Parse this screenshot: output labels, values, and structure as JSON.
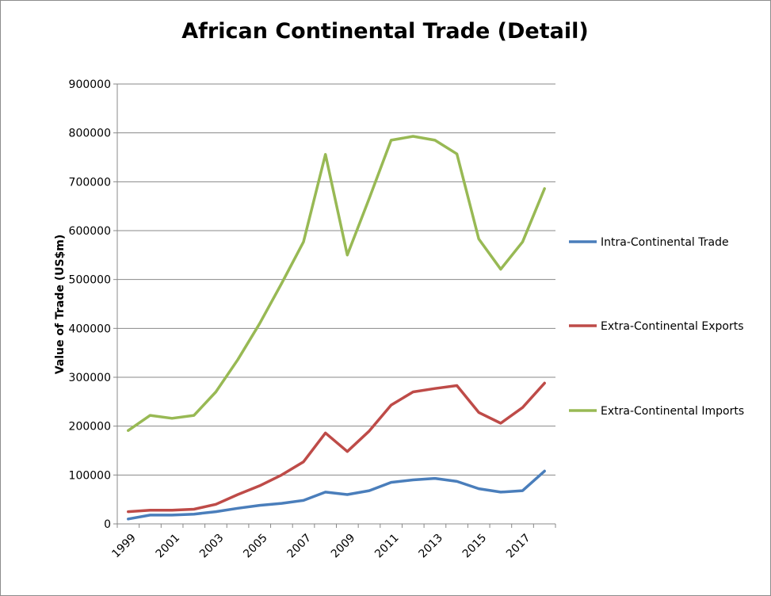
{
  "chart_data": {
    "type": "line",
    "title": "African Continental Trade (Detail)",
    "xlabel": "",
    "ylabel": "Value of Trade (US$m)",
    "ylim": [
      0,
      900000
    ],
    "yticks": [
      "0",
      "100000",
      "200000",
      "300000",
      "400000",
      "500000",
      "600000",
      "700000",
      "800000",
      "900000"
    ],
    "x": [
      1999,
      2000,
      2001,
      2002,
      2003,
      2004,
      2005,
      2006,
      2007,
      2008,
      2009,
      2010,
      2011,
      2012,
      2013,
      2014,
      2015,
      2016,
      2017,
      2018
    ],
    "xtick_labels": [
      "1999",
      "2001",
      "2003",
      "2005",
      "2007",
      "2009",
      "2011",
      "2013",
      "2015",
      "2017"
    ],
    "grid": true,
    "legend_position": "right",
    "series": [
      {
        "name": "Intra-Continental Trade",
        "color": "#4a7ebb",
        "values": [
          10000,
          18000,
          18000,
          20000,
          25000,
          32000,
          38000,
          42000,
          48000,
          65000,
          60000,
          68000,
          85000,
          90000,
          93000,
          87000,
          72000,
          65000,
          68000,
          108000
        ]
      },
      {
        "name": "Extra-Continental Exports",
        "color": "#be4b48",
        "values": [
          25000,
          28000,
          28000,
          30000,
          40000,
          60000,
          78000,
          100000,
          127000,
          186000,
          148000,
          190000,
          243000,
          270000,
          277000,
          283000,
          228000,
          206000,
          238000,
          288000
        ]
      },
      {
        "name": "Extra-Continental Imports",
        "color": "#98b954",
        "values": [
          191000,
          222000,
          216000,
          222000,
          270000,
          336000,
          410000,
          492000,
          577000,
          756000,
          550000,
          666000,
          785000,
          793000,
          785000,
          757000,
          583000,
          521000,
          577000,
          686000
        ]
      }
    ]
  }
}
